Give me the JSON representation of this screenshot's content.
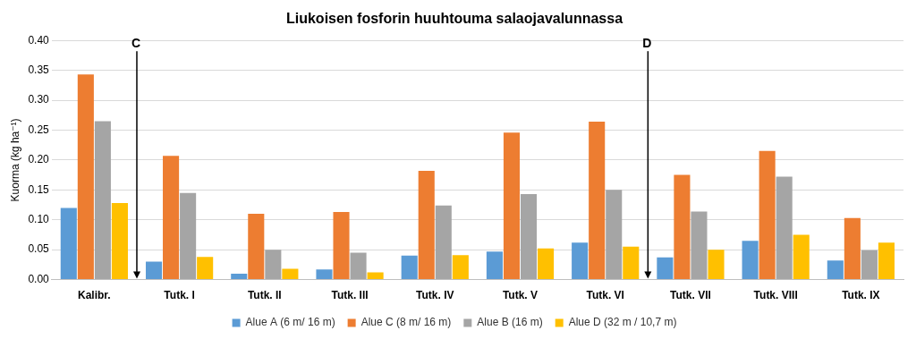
{
  "chart_data": {
    "type": "bar",
    "title": "Liukoisen fosforin huuhtouma salaojavalunnassa",
    "y_label": "Kuorma (kg ha⁻¹)",
    "categories": [
      "Kalibr.",
      "Tutk. I",
      "Tutk. II",
      "Tutk. III",
      "Tutk. IV",
      "Tutk. V",
      "Tutk. VI",
      "Tutk. VII",
      "Tutk. VIII",
      "Tutk. IX"
    ],
    "series": [
      {
        "name": "Alue A (6 m/ 16 m)",
        "color": "#5b9bd5",
        "values": [
          0.12,
          0.03,
          0.01,
          0.017,
          0.04,
          0.047,
          0.062,
          0.037,
          0.065,
          0.032
        ]
      },
      {
        "name": "Alue C (8 m/ 16 m)",
        "color": "#ed7d31",
        "values": [
          0.343,
          0.207,
          0.11,
          0.113,
          0.182,
          0.246,
          0.264,
          0.175,
          0.215,
          0.103
        ]
      },
      {
        "name": "Alue B (16 m)",
        "color": "#a5a5a5",
        "values": [
          0.265,
          0.145,
          0.05,
          0.045,
          0.124,
          0.143,
          0.15,
          0.114,
          0.172,
          0.049
        ]
      },
      {
        "name": "Alue D (32 m / 10,7 m)",
        "color": "#ffc000",
        "values": [
          0.128,
          0.038,
          0.018,
          0.012,
          0.041,
          0.052,
          0.055,
          0.05,
          0.075,
          0.062
        ]
      }
    ],
    "annotations": [
      {
        "text": "C",
        "x": 0.5
      },
      {
        "text": "D",
        "x": 6.5
      }
    ],
    "ylim": [
      0,
      0.4
    ],
    "yticks": [
      {
        "value": 0,
        "label": "0.00"
      },
      {
        "value": 0.05,
        "label": "0.05"
      },
      {
        "value": 0.1,
        "label": "0.10"
      },
      {
        "value": 0.15,
        "label": "0.15"
      },
      {
        "value": 0.2,
        "label": "0.20"
      },
      {
        "value": 0.25,
        "label": "0.25"
      },
      {
        "value": 0.3,
        "label": "0.30"
      },
      {
        "value": 0.35,
        "label": "0.35"
      },
      {
        "value": 0.4,
        "label": "0.40"
      }
    ],
    "grid": true,
    "legend": "bottom"
  }
}
